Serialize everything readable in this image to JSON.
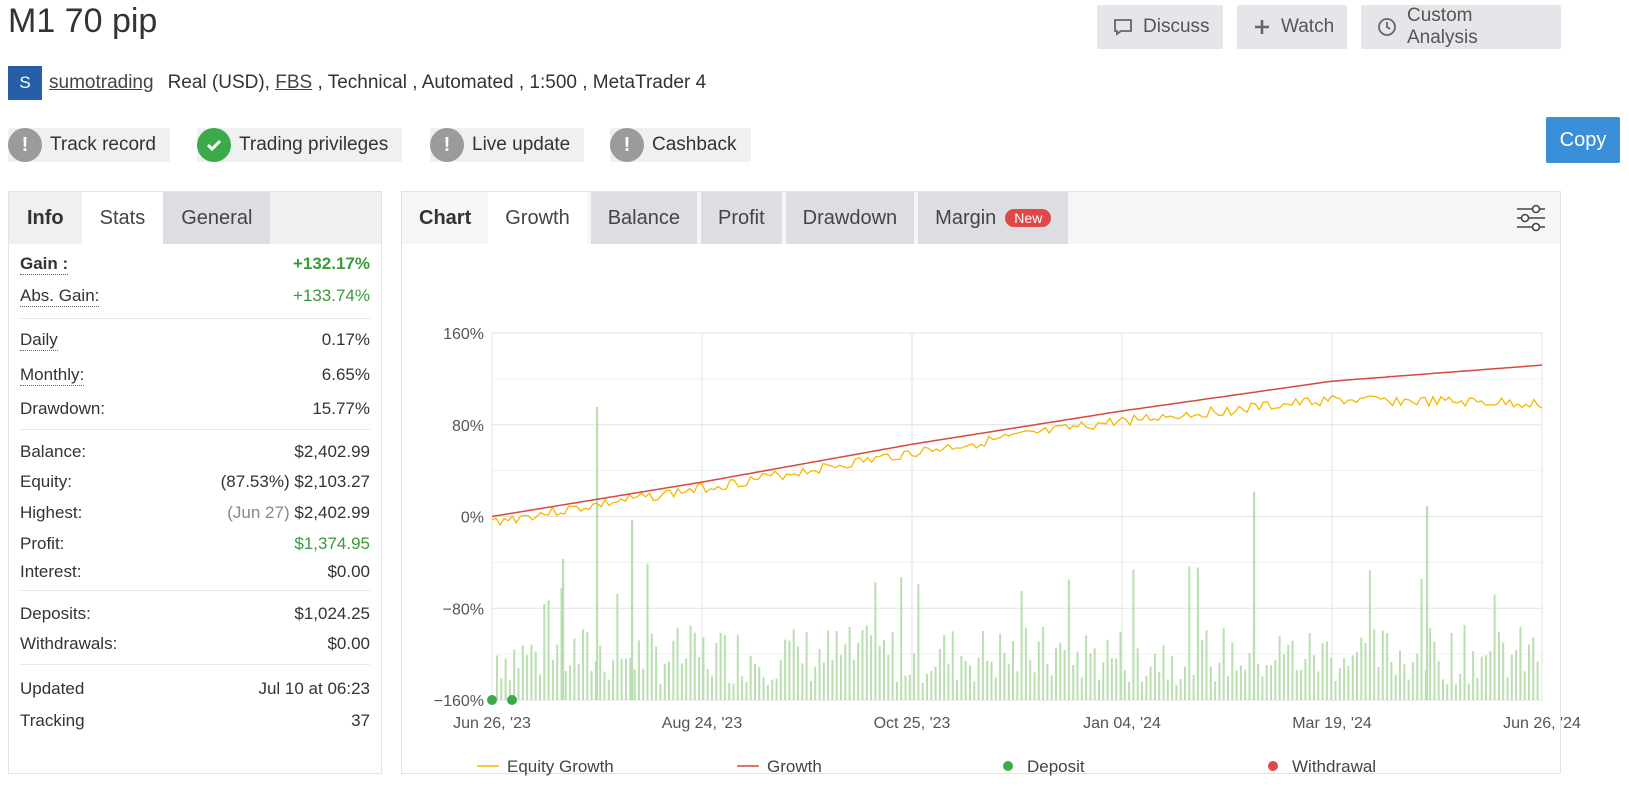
{
  "title": "M1 70 pip",
  "header_buttons": {
    "discuss": "Discuss",
    "watch": "Watch",
    "custom_analysis": "Custom Analysis"
  },
  "owner": {
    "avatar_letter": "S",
    "name": "sumotrading",
    "account_type": "Real (USD),",
    "broker": "FBS",
    "details": ", Technical , Automated , 1:500 , MetaTrader 4"
  },
  "badges": {
    "track_record": "Track record",
    "trading_privileges": "Trading privileges",
    "live_update": "Live update",
    "cashback": "Cashback"
  },
  "copy_label": "Copy",
  "left_tabs": {
    "info": "Info",
    "stats": "Stats",
    "general": "General"
  },
  "stats": {
    "gain_label": "Gain :",
    "gain": "+132.17%",
    "abs_gain_label": "Abs. Gain:",
    "abs_gain": "+133.74%",
    "daily_label": "Daily",
    "daily": "0.17%",
    "monthly_label": "Monthly:",
    "monthly": "6.65%",
    "drawdown_label": "Drawdown:",
    "drawdown": "15.77%",
    "balance_label": "Balance:",
    "balance": "$2,402.99",
    "equity_label": "Equity:",
    "equity_pct": "(87.53%)",
    "equity": "$2,103.27",
    "highest_label": "Highest:",
    "highest_date": "(Jun 27)",
    "highest": "$2,402.99",
    "profit_label": "Profit:",
    "profit": "$1,374.95",
    "interest_label": "Interest:",
    "interest": "$0.00",
    "deposits_label": "Deposits:",
    "deposits": "$1,024.25",
    "withdrawals_label": "Withdrawals:",
    "withdrawals": "$0.00",
    "updated_label": "Updated",
    "updated": "Jul 10 at 06:23",
    "tracking_label": "Tracking",
    "tracking": "37"
  },
  "chart_tabs": {
    "chart": "Chart",
    "growth": "Growth",
    "balance": "Balance",
    "profit": "Profit",
    "drawdown": "Drawdown",
    "margin": "Margin",
    "new_badge": "New"
  },
  "colors": {
    "equity": "#f5b800",
    "growth": "#d9483b",
    "deposit": "#3daa49",
    "withdrawal": "#e04848",
    "bars": "#b9dfb0",
    "accent": "#3b8fd9"
  },
  "chart_data": {
    "type": "line",
    "ylim": [
      -160,
      160
    ],
    "y_ticks": [
      "160%",
      "80%",
      "0%",
      "−80%",
      "−160%"
    ],
    "x_ticks": [
      "Jun 26, '23",
      "Aug 24, '23",
      "Oct 25, '23",
      "Jan 04, '24",
      "Mar 19, '24",
      "Jun 26, '24"
    ],
    "legend": [
      "Equity Growth",
      "Growth",
      "Deposit",
      "Withdrawal"
    ],
    "legend_position": "bottom",
    "series": [
      {
        "name": "Growth",
        "x": [
          "Jun 26, '23",
          "Aug 24, '23",
          "Oct 25, '23",
          "Jan 04, '24",
          "Mar 19, '24",
          "Jun 26, '24"
        ],
        "values": [
          0,
          30,
          63,
          92,
          118,
          132
        ]
      },
      {
        "name": "Equity Growth",
        "x": [
          "Jun 26, '23",
          "Aug 24, '23",
          "Oct 25, '23",
          "Jan 04, '24",
          "Mar 19, '24",
          "Jun 26, '24"
        ],
        "values": [
          0,
          29,
          60,
          88,
          106,
          103
        ]
      }
    ],
    "deposits": [
      "Jun 26, '23"
    ],
    "grid": true
  }
}
